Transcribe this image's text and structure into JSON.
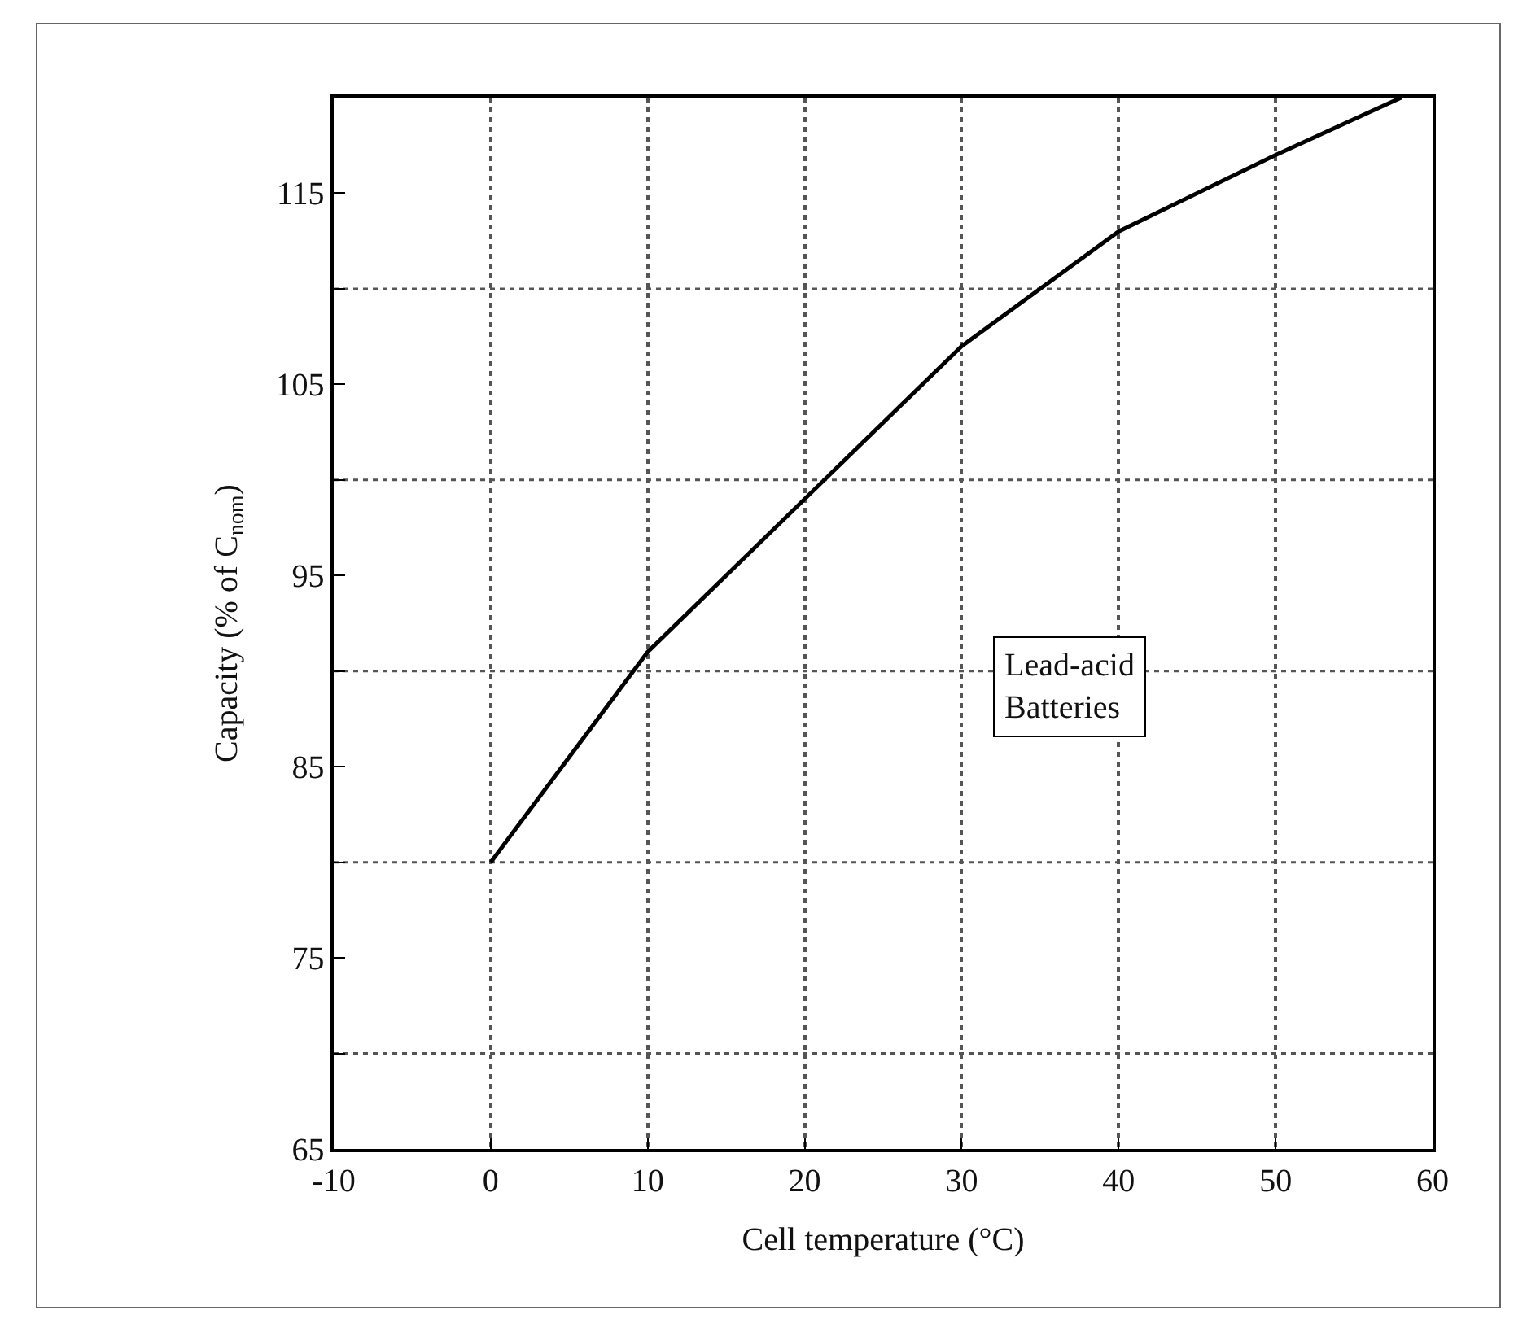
{
  "chart_data": {
    "type": "line",
    "xlabel": "Cell temperature (°C)",
    "ylabel": "Capacity (% of C$_{nom}$)",
    "x": [
      0,
      10,
      20,
      30,
      40,
      50,
      58
    ],
    "values": [
      80,
      91,
      99,
      107,
      113,
      117,
      120
    ],
    "color": "#000000",
    "marker": "none",
    "line_style": "solid",
    "xlim": [
      -10,
      60
    ],
    "xticks": [
      -10,
      0,
      10,
      20,
      30,
      40,
      50,
      60
    ],
    "ylim": [
      65,
      120
    ],
    "yticks": [
      65,
      {
        "value": 70,
        "label": null
      },
      75,
      {
        "value": 80,
        "label": null
      },
      85,
      {
        "value": 90,
        "label": null
      },
      95,
      {
        "value": 100,
        "label": null
      },
      105,
      {
        "value": 110,
        "label": null
      },
      115
    ],
    "grid": true,
    "annotations": [
      "Lead-acid\nBatteries"
    ]
  }
}
